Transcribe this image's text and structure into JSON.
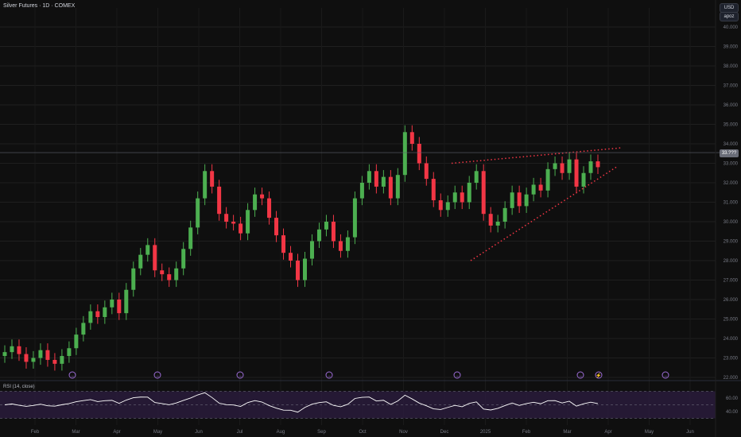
{
  "legend": {
    "title": "Silver Futures · 1D · COMEX"
  },
  "price_scale": {
    "currency": "USD",
    "unit": "apoz",
    "labels": [
      "40.000",
      "39.000",
      "38.000",
      "37.000",
      "36.000",
      "35.000",
      "34.000",
      "33.000",
      "32.000",
      "31.000",
      "30.000",
      "29.000",
      "28.000",
      "27.000",
      "26.000",
      "25.000",
      "24.000",
      "23.000",
      "22.000"
    ],
    "current_price": "33.???"
  },
  "time_axis": {
    "labels": [
      "Feb",
      "Mar",
      "Apr",
      "May",
      "Jun",
      "Jul",
      "Aug",
      "Sep",
      "Oct",
      "Nov",
      "Dec",
      "2025",
      "Feb",
      "Mar",
      "Apr",
      "May",
      "Jun"
    ]
  },
  "rsi": {
    "label": "RSI (14, close)",
    "levels": [
      "60.00",
      "40.00"
    ]
  },
  "event_markers": [
    "dividend-arrow",
    "dividend-arrow",
    "dividend-arrow",
    "dividend-arrow",
    "dividend-arrow",
    "dividend-arrow",
    "flash",
    "dividend-arrow"
  ],
  "colors": {
    "up": "#4caf50",
    "down": "#f23645",
    "trend": "#f23645",
    "rsi": "#ffffff",
    "rsi_band": "#2a1b3d",
    "bg": "#0f0f0f"
  },
  "chart_data": {
    "type": "candlestick",
    "y_range": [
      22,
      40
    ],
    "series": [
      {
        "name": "",
        "values": [
          23.3,
          23.6,
          23.2,
          22.8,
          23.0,
          23.4,
          22.9,
          22.7,
          23.1,
          23.5,
          24.2,
          24.8,
          25.4,
          25.1,
          25.6,
          26.0,
          25.3,
          26.5,
          27.6,
          28.3,
          28.8,
          27.5,
          27.3,
          27.0,
          27.6,
          28.6,
          29.7,
          31.2,
          32.6,
          31.8,
          30.4,
          30.0,
          29.9,
          29.4,
          30.6,
          31.4,
          31.2,
          30.2,
          29.3,
          28.4,
          28.0,
          27.0,
          28.1,
          29.0,
          29.6,
          30.0,
          29.0,
          28.5,
          29.2,
          31.2,
          32.0,
          32.6,
          31.8,
          32.3,
          31.2,
          32.4,
          34.6,
          34.0,
          33.0,
          32.2,
          31.1,
          30.6,
          31.0,
          31.5,
          31.0,
          32.0,
          32.6,
          30.4,
          29.8,
          30.0,
          30.7,
          31.5,
          30.8,
          31.4,
          31.9,
          31.6,
          32.7,
          33.0,
          32.5,
          33.2,
          31.8,
          32.5,
          33.1,
          32.8
        ]
      }
    ],
    "trendlines": [
      {
        "name": "",
        "points": [
          [
            0,
            33.0
          ],
          [
            1,
            33.8
          ]
        ]
      },
      {
        "name": "",
        "points": [
          [
            0,
            28.0
          ],
          [
            1,
            33.0
          ]
        ]
      }
    ]
  }
}
